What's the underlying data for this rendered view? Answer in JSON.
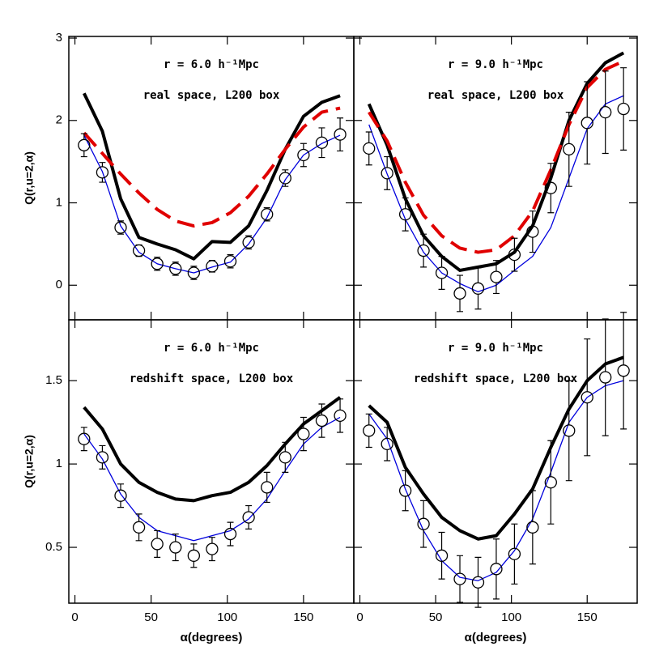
{
  "chart_data": [
    {
      "type": "line",
      "title": "r = 6.0 h⁻¹Mpc",
      "subtitle": "real space, L200 box",
      "ylabel": "Q(r,u=2,α)",
      "x": [
        6,
        18,
        30,
        42,
        54,
        66,
        78,
        90,
        102,
        114,
        126,
        138,
        150,
        162,
        174
      ],
      "series": [
        {
          "color": "#000000",
          "width": 4,
          "dashed": false,
          "values": [
            2.33,
            1.87,
            1.05,
            0.58,
            0.5,
            0.43,
            0.32,
            0.53,
            0.52,
            0.72,
            1.15,
            1.65,
            2.05,
            2.22,
            2.3
          ]
        },
        {
          "color": "#e00000",
          "width": 4,
          "dashed": true,
          "values": [
            1.85,
            1.6,
            1.35,
            1.12,
            0.92,
            0.78,
            0.72,
            0.76,
            0.88,
            1.08,
            1.35,
            1.65,
            1.92,
            2.1,
            2.15
          ]
        },
        {
          "color": "#0000dd",
          "width": 1.3,
          "dashed": false,
          "values": [
            1.82,
            1.38,
            0.72,
            0.4,
            0.26,
            0.2,
            0.15,
            0.22,
            0.28,
            0.5,
            0.82,
            1.28,
            1.58,
            1.72,
            1.82
          ]
        }
      ],
      "points": {
        "color": "#000000",
        "values": [
          1.7,
          1.37,
          0.7,
          0.42,
          0.26,
          0.2,
          0.15,
          0.23,
          0.29,
          0.52,
          0.86,
          1.3,
          1.58,
          1.73,
          1.83
        ],
        "errors": [
          0.14,
          0.12,
          0.08,
          0.07,
          0.08,
          0.08,
          0.08,
          0.07,
          0.08,
          0.08,
          0.08,
          0.1,
          0.14,
          0.18,
          0.2
        ]
      },
      "xlim": [
        -4,
        183
      ],
      "ylim": [
        -0.42,
        3.02
      ],
      "xticks": [
        0,
        50,
        100,
        150
      ],
      "yticks": [
        0,
        1,
        2,
        3
      ],
      "xtick_labels": false,
      "ytick_labels": true
    },
    {
      "type": "line",
      "title": "r = 9.0 h⁻¹Mpc",
      "subtitle": "real space, L200 box",
      "x": [
        6,
        18,
        30,
        42,
        54,
        66,
        78,
        90,
        102,
        114,
        126,
        138,
        150,
        162,
        174
      ],
      "series": [
        {
          "color": "#000000",
          "width": 4,
          "dashed": false,
          "values": [
            2.2,
            1.7,
            1.05,
            0.6,
            0.35,
            0.18,
            0.22,
            0.26,
            0.4,
            0.72,
            1.3,
            2.0,
            2.45,
            2.7,
            2.82
          ]
        },
        {
          "color": "#e00000",
          "width": 4,
          "dashed": true,
          "values": [
            2.1,
            1.75,
            1.25,
            0.85,
            0.6,
            0.45,
            0.4,
            0.43,
            0.6,
            0.9,
            1.4,
            1.95,
            2.4,
            2.62,
            2.72
          ]
        },
        {
          "color": "#0000dd",
          "width": 1.3,
          "dashed": false,
          "values": [
            1.95,
            1.35,
            0.8,
            0.4,
            0.15,
            0.02,
            -0.08,
            0.0,
            0.18,
            0.35,
            0.7,
            1.3,
            1.9,
            2.2,
            2.3
          ]
        }
      ],
      "points": {
        "color": "#000000",
        "values": [
          1.66,
          1.36,
          0.86,
          0.42,
          0.15,
          -0.1,
          -0.04,
          0.1,
          0.37,
          0.65,
          1.18,
          1.65,
          1.97,
          2.1,
          2.14
        ],
        "errors": [
          0.2,
          0.2,
          0.2,
          0.2,
          0.2,
          0.22,
          0.25,
          0.2,
          0.2,
          0.25,
          0.3,
          0.45,
          0.5,
          0.5,
          0.5
        ]
      },
      "xlim": [
        -4,
        183
      ],
      "ylim": [
        -0.42,
        3.02
      ],
      "xticks": [
        0,
        50,
        100,
        150
      ],
      "yticks": [
        0,
        1,
        2,
        3
      ],
      "xtick_labels": false,
      "ytick_labels": false
    },
    {
      "type": "line",
      "title": "r = 6.0 h⁻¹Mpc",
      "subtitle": "redshift space, L200 box",
      "ylabel": "Q(r,u=2,α)",
      "xlabel": "α(degrees)",
      "x": [
        6,
        18,
        30,
        42,
        54,
        66,
        78,
        90,
        102,
        114,
        126,
        138,
        150,
        162,
        174
      ],
      "series": [
        {
          "color": "#000000",
          "width": 4,
          "dashed": false,
          "values": [
            1.34,
            1.21,
            1.0,
            0.89,
            0.83,
            0.79,
            0.78,
            0.81,
            0.83,
            0.89,
            0.99,
            1.12,
            1.24,
            1.32,
            1.4
          ]
        },
        {
          "color": "#0000dd",
          "width": 1.3,
          "dashed": false,
          "values": [
            1.18,
            1.03,
            0.82,
            0.68,
            0.6,
            0.57,
            0.54,
            0.57,
            0.6,
            0.67,
            0.79,
            0.96,
            1.12,
            1.22,
            1.28
          ]
        }
      ],
      "points": {
        "color": "#000000",
        "values": [
          1.15,
          1.04,
          0.81,
          0.62,
          0.52,
          0.5,
          0.45,
          0.49,
          0.58,
          0.68,
          0.86,
          1.04,
          1.18,
          1.26,
          1.29
        ],
        "errors": [
          0.07,
          0.07,
          0.07,
          0.08,
          0.08,
          0.08,
          0.07,
          0.07,
          0.07,
          0.07,
          0.09,
          0.09,
          0.1,
          0.1,
          0.1
        ]
      },
      "xlim": [
        -4,
        183
      ],
      "ylim": [
        0.165,
        1.865
      ],
      "xticks": [
        0,
        50,
        100,
        150
      ],
      "yticks": [
        0.5,
        1,
        1.5
      ],
      "xtick_labels": true,
      "ytick_labels": true
    },
    {
      "type": "line",
      "title": "r = 9.0 h⁻¹Mpc",
      "subtitle": "redshift space, L200 box",
      "xlabel": "α(degrees)",
      "x": [
        6,
        18,
        30,
        42,
        54,
        66,
        78,
        90,
        102,
        114,
        126,
        138,
        150,
        162,
        174
      ],
      "series": [
        {
          "color": "#000000",
          "width": 4,
          "dashed": false,
          "values": [
            1.35,
            1.25,
            0.98,
            0.82,
            0.68,
            0.6,
            0.55,
            0.57,
            0.7,
            0.85,
            1.1,
            1.33,
            1.5,
            1.6,
            1.64
          ]
        },
        {
          "color": "#0000dd",
          "width": 1.3,
          "dashed": false,
          "values": [
            1.3,
            1.15,
            0.85,
            0.6,
            0.42,
            0.32,
            0.3,
            0.35,
            0.48,
            0.67,
            0.95,
            1.25,
            1.4,
            1.47,
            1.5
          ]
        }
      ],
      "points": {
        "color": "#000000",
        "values": [
          1.2,
          1.12,
          0.84,
          0.64,
          0.45,
          0.31,
          0.29,
          0.37,
          0.46,
          0.62,
          0.89,
          1.2,
          1.4,
          1.52,
          1.56
        ],
        "errors": [
          0.1,
          0.1,
          0.12,
          0.14,
          0.14,
          0.14,
          0.15,
          0.18,
          0.18,
          0.22,
          0.25,
          0.3,
          0.35,
          0.35,
          0.35
        ]
      },
      "xlim": [
        -4,
        183
      ],
      "ylim": [
        0.165,
        1.865
      ],
      "xticks": [
        0,
        50,
        100,
        150
      ],
      "yticks": [
        0.5,
        1,
        1.5
      ],
      "xtick_labels": true,
      "ytick_labels": false
    }
  ]
}
